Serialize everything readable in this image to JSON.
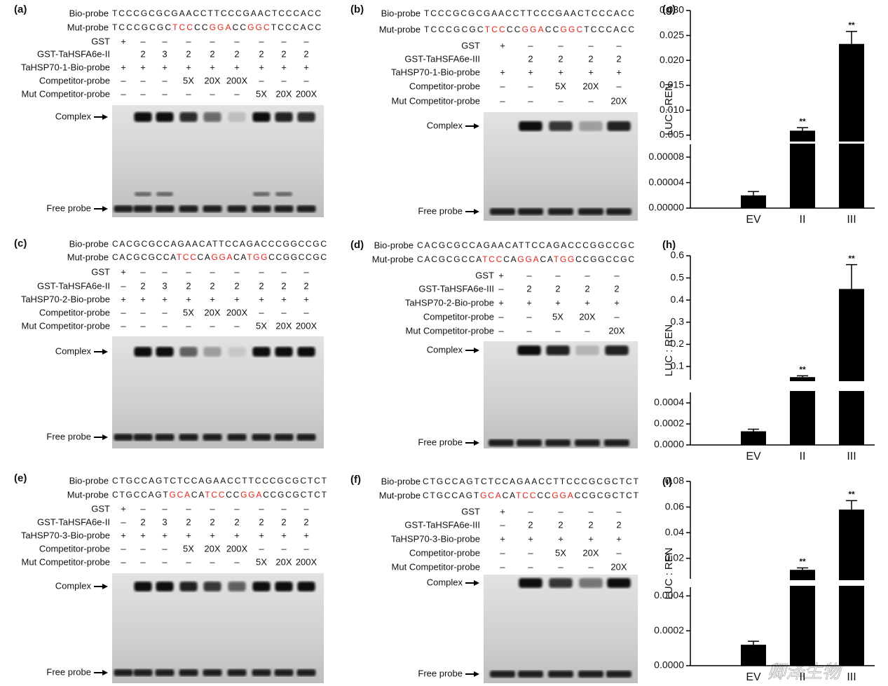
{
  "panels": [
    {
      "label": "(a)",
      "rows": [
        {
          "label": "Bio-probe",
          "sequence": [
            {
              "text": "TCCCGCGCGAACCTTCCCGAACTCCCACC"
            }
          ]
        },
        {
          "label": "Mut-probe",
          "sequence": [
            {
              "text": "TCCCGCGC"
            },
            {
              "text": "TCC",
              "color": "#e3241b"
            },
            {
              "text": "CC"
            },
            {
              "text": "GGA",
              "color": "#e3241b"
            },
            {
              "text": "CC"
            },
            {
              "text": "GGC",
              "color": "#e3241b"
            },
            {
              "text": "TCCCACC"
            }
          ]
        },
        {
          "label": "GST",
          "lanes": [
            "+",
            "–",
            "–",
            "–",
            "–",
            "–",
            "–",
            "–",
            "–"
          ]
        },
        {
          "label": "GST-TaHSFA6e-II",
          "lanes": [
            null,
            "2",
            "3",
            "2",
            "2",
            "2",
            "2",
            "2",
            "2"
          ]
        },
        {
          "label": "TaHSP70-1-Bio-probe",
          "lanes": [
            "+",
            "+",
            "+",
            "+",
            "+",
            "+",
            "+",
            "+",
            "+"
          ]
        },
        {
          "label": "Competitor-probe",
          "lanes": [
            "–",
            "–",
            "–",
            "5X",
            "20X",
            "200X",
            "–",
            "–",
            "–"
          ]
        },
        {
          "label": "Mut Competitor-probe",
          "lanes": [
            "–",
            "–",
            "–",
            "–",
            "–",
            "–",
            "5X",
            "20X",
            "200X"
          ]
        }
      ],
      "complex": "Complex",
      "free": "Free probe"
    },
    {
      "label": "(b)",
      "rows": [
        {
          "label": "Bio-probe",
          "sequence": [
            {
              "text": "TCCCGCGCGAACCTTCCCGAACTCCCACC"
            }
          ]
        },
        {
          "label": "Mut-probe",
          "sequence": [
            {
              "text": "TCCCGCGC"
            },
            {
              "text": "TCC",
              "color": "#e3241b"
            },
            {
              "text": "CC"
            },
            {
              "text": "GGA",
              "color": "#e3241b"
            },
            {
              "text": "CC"
            },
            {
              "text": "GGC",
              "color": "#e3241b"
            },
            {
              "text": "TCCCACC"
            }
          ]
        },
        {
          "label": "GST",
          "lanes": [
            "+",
            "–",
            "–",
            "–",
            "–"
          ]
        },
        {
          "label": "GST-TaHSFA6e-III",
          "lanes": [
            null,
            "2",
            "2",
            "2",
            "2"
          ]
        },
        {
          "label": "TaHSP70-1-Bio-probe",
          "lanes": [
            "+",
            "+",
            "+",
            "+",
            "+"
          ]
        },
        {
          "label": "Competitor-probe",
          "lanes": [
            "–",
            "–",
            "5X",
            "20X",
            "–"
          ]
        },
        {
          "label": "Mut Competitor-probe",
          "lanes": [
            "–",
            "–",
            "–",
            "–",
            "20X"
          ]
        }
      ],
      "complex": "Complex",
      "free": "Free probe"
    },
    {
      "label": "(c)",
      "rows": [
        {
          "label": "Bio-probe",
          "sequence": [
            {
              "text": "CACGCGCCAGAACATTCCAGACCCGGCCGC"
            }
          ]
        },
        {
          "label": "Mut-probe",
          "sequence": [
            {
              "text": "CACGCGCCA"
            },
            {
              "text": "TCC",
              "color": "#e3241b"
            },
            {
              "text": "CA"
            },
            {
              "text": "GGA",
              "color": "#e3241b"
            },
            {
              "text": "CA"
            },
            {
              "text": "TGG",
              "color": "#e3241b"
            },
            {
              "text": "CCGGCCGC"
            }
          ]
        },
        {
          "label": "GST",
          "lanes": [
            "+",
            "–",
            "–",
            "–",
            "–",
            "–",
            "–",
            "–",
            "–"
          ]
        },
        {
          "label": "GST-TaHSFA6e-II",
          "lanes": [
            "–",
            "2",
            "3",
            "2",
            "2",
            "2",
            "2",
            "2",
            "2"
          ]
        },
        {
          "label": "TaHSP70-2-Bio-probe",
          "lanes": [
            "+",
            "+",
            "+",
            "+",
            "+",
            "+",
            "+",
            "+",
            "+"
          ]
        },
        {
          "label": "Competitor-probe",
          "lanes": [
            "–",
            "–",
            "–",
            "5X",
            "20X",
            "200X",
            "–",
            "–",
            "–"
          ]
        },
        {
          "label": "Mut Competitor-probe",
          "lanes": [
            "–",
            "–",
            "–",
            "–",
            "–",
            "–",
            "5X",
            "20X",
            "200X"
          ]
        }
      ],
      "complex": "Complex",
      "free": "Free probe"
    },
    {
      "label": "(d)",
      "rows": [
        {
          "label": "Bio-probe",
          "sequence": [
            {
              "text": "CACGCGCCAGAACATTCCAGACCCGGCCGC"
            }
          ]
        },
        {
          "label": "Mut-probe",
          "sequence": [
            {
              "text": "CACGCGCCA"
            },
            {
              "text": "TCC",
              "color": "#e3241b"
            },
            {
              "text": "CA"
            },
            {
              "text": "GGA",
              "color": "#e3241b"
            },
            {
              "text": "CA"
            },
            {
              "text": "TGG",
              "color": "#e3241b"
            },
            {
              "text": "CCGGCCGC"
            }
          ]
        },
        {
          "label": "GST",
          "lanes": [
            "+",
            "–",
            "–",
            "–",
            "–"
          ]
        },
        {
          "label": "GST-TaHSFA6e-III",
          "lanes": [
            "–",
            "2",
            "2",
            "2",
            "2"
          ]
        },
        {
          "label": "TaHSP70-2-Bio-probe",
          "lanes": [
            "+",
            "+",
            "+",
            "+",
            "+"
          ]
        },
        {
          "label": "Competitor-probe",
          "lanes": [
            "–",
            "–",
            "5X",
            "20X",
            "–"
          ]
        },
        {
          "label": "Mut Competitor-probe",
          "lanes": [
            "–",
            "–",
            "–",
            "–",
            "20X"
          ]
        }
      ],
      "complex": "Complex",
      "free": "Free probe"
    },
    {
      "label": "(e)",
      "rows": [
        {
          "label": "Bio-probe",
          "sequence": [
            {
              "text": "CTGCCAGTCTCCAGAACCTTCCCGCGCTCT"
            }
          ]
        },
        {
          "label": "Mut-probe",
          "sequence": [
            {
              "text": "CTGCCAGT"
            },
            {
              "text": "GCA",
              "color": "#e3241b"
            },
            {
              "text": "CA"
            },
            {
              "text": "TCC",
              "color": "#e3241b"
            },
            {
              "text": "CC"
            },
            {
              "text": "GGA",
              "color": "#e3241b"
            },
            {
              "text": "CCGCGCTCT"
            }
          ]
        },
        {
          "label": "GST",
          "lanes": [
            "+",
            "–",
            "–",
            "–",
            "–",
            "–",
            "–",
            "–",
            "–"
          ]
        },
        {
          "label": "GST-TaHSFA6e-II",
          "lanes": [
            "–",
            "2",
            "3",
            "2",
            "2",
            "2",
            "2",
            "2",
            "2"
          ]
        },
        {
          "label": "TaHSP70-3-Bio-probe",
          "lanes": [
            "+",
            "+",
            "+",
            "+",
            "+",
            "+",
            "+",
            "+",
            "+"
          ]
        },
        {
          "label": "Competitor-probe",
          "lanes": [
            "–",
            "–",
            "–",
            "5X",
            "20X",
            "200X",
            "–",
            "–",
            "–"
          ]
        },
        {
          "label": "Mut Competitor-probe",
          "lanes": [
            "–",
            "–",
            "–",
            "–",
            "–",
            "–",
            "5X",
            "20X",
            "200X"
          ]
        }
      ],
      "complex": "Complex",
      "free": "Free probe"
    },
    {
      "label": "(f)",
      "rows": [
        {
          "label": "Bio-probe",
          "sequence": [
            {
              "text": "CTGCCAGTCTCCAGAACCTTCCCGCGCTCT"
            }
          ]
        },
        {
          "label": "Mut-probe",
          "sequence": [
            {
              "text": "CTGCCAGT"
            },
            {
              "text": "GCA",
              "color": "#e3241b"
            },
            {
              "text": "CA"
            },
            {
              "text": "TCC",
              "color": "#e3241b"
            },
            {
              "text": "CC"
            },
            {
              "text": "GGA",
              "color": "#e3241b"
            },
            {
              "text": "CCGCGCTCT"
            }
          ]
        },
        {
          "label": "GST",
          "lanes": [
            "+",
            "–",
            "–",
            "–",
            "–"
          ]
        },
        {
          "label": "GST-TaHSFA6e-III",
          "lanes": [
            "–",
            "2",
            "2",
            "2",
            "2"
          ]
        },
        {
          "label": "TaHSP70-3-Bio-probe",
          "lanes": [
            "+",
            "+",
            "+",
            "+",
            "+"
          ]
        },
        {
          "label": "Competitor-probe",
          "lanes": [
            "–",
            "–",
            "5X",
            "20X",
            "–"
          ]
        },
        {
          "label": "Mut Competitor-probe",
          "lanes": [
            "–",
            "–",
            "–",
            "–",
            "20X"
          ]
        }
      ],
      "complex": "Complex",
      "free": "Free probe"
    }
  ],
  "chart_data": [
    {
      "type": "bar",
      "label": "(g)",
      "ylabel": "LUC : REN",
      "categories": [
        "EV",
        "II",
        "III"
      ],
      "values": [
        2e-05,
        0.0059,
        0.0233
      ],
      "errors": [
        6e-06,
        0.0006,
        0.0025
      ],
      "annotations": [
        null,
        "**",
        "**"
      ],
      "color": "#000000",
      "axis_segments": [
        {
          "ylim": [
            0,
            0.0001
          ],
          "yticks": [
            {
              "value": 0,
              "label": "0.00000"
            },
            4e-05,
            8e-05
          ]
        },
        {
          "ylim": [
            0.004,
            0.03
          ],
          "yticks": [
            0.005,
            {
              "value": 0.01,
              "label": "0.010"
            },
            0.015,
            {
              "value": 0.02,
              "label": "0.020"
            },
            0.025,
            {
              "value": 0.03,
              "label": "0.030"
            }
          ]
        }
      ]
    },
    {
      "type": "bar",
      "label": "(h)",
      "ylabel": "LUC : REN",
      "categories": [
        "EV",
        "II",
        "III"
      ],
      "values": [
        0.00013,
        0.052,
        0.45
      ],
      "errors": [
        2e-05,
        0.006,
        0.11
      ],
      "annotations": [
        null,
        "**",
        "**"
      ],
      "color": "#000000",
      "axis_segments": [
        {
          "ylim": [
            0,
            0.0005
          ],
          "yticks": [
            {
              "value": 0,
              "label": "0.0000"
            },
            0.0002,
            0.0004
          ]
        },
        {
          "ylim": [
            0.04,
            0.6
          ],
          "yticks": [
            0.1,
            0.2,
            0.3,
            0.4,
            0.5,
            0.6
          ]
        }
      ]
    },
    {
      "type": "bar",
      "label": "(i)",
      "ylabel": "LUC : REN",
      "categories": [
        "EV",
        "II",
        "III"
      ],
      "values": [
        0.00012,
        0.011,
        0.058
      ],
      "errors": [
        2e-05,
        0.0015,
        0.007
      ],
      "annotations": [
        null,
        "**",
        "**"
      ],
      "color": "#000000",
      "axis_segments": [
        {
          "ylim": [
            0,
            0.00045
          ],
          "yticks": [
            {
              "value": 0,
              "label": "0.0000"
            },
            0.0002,
            0.0004
          ]
        },
        {
          "ylim": [
            0.004,
            0.08
          ],
          "yticks": [
            0.02,
            0.04,
            0.06,
            0.08
          ]
        }
      ]
    }
  ],
  "watermark": "卿泽生物"
}
